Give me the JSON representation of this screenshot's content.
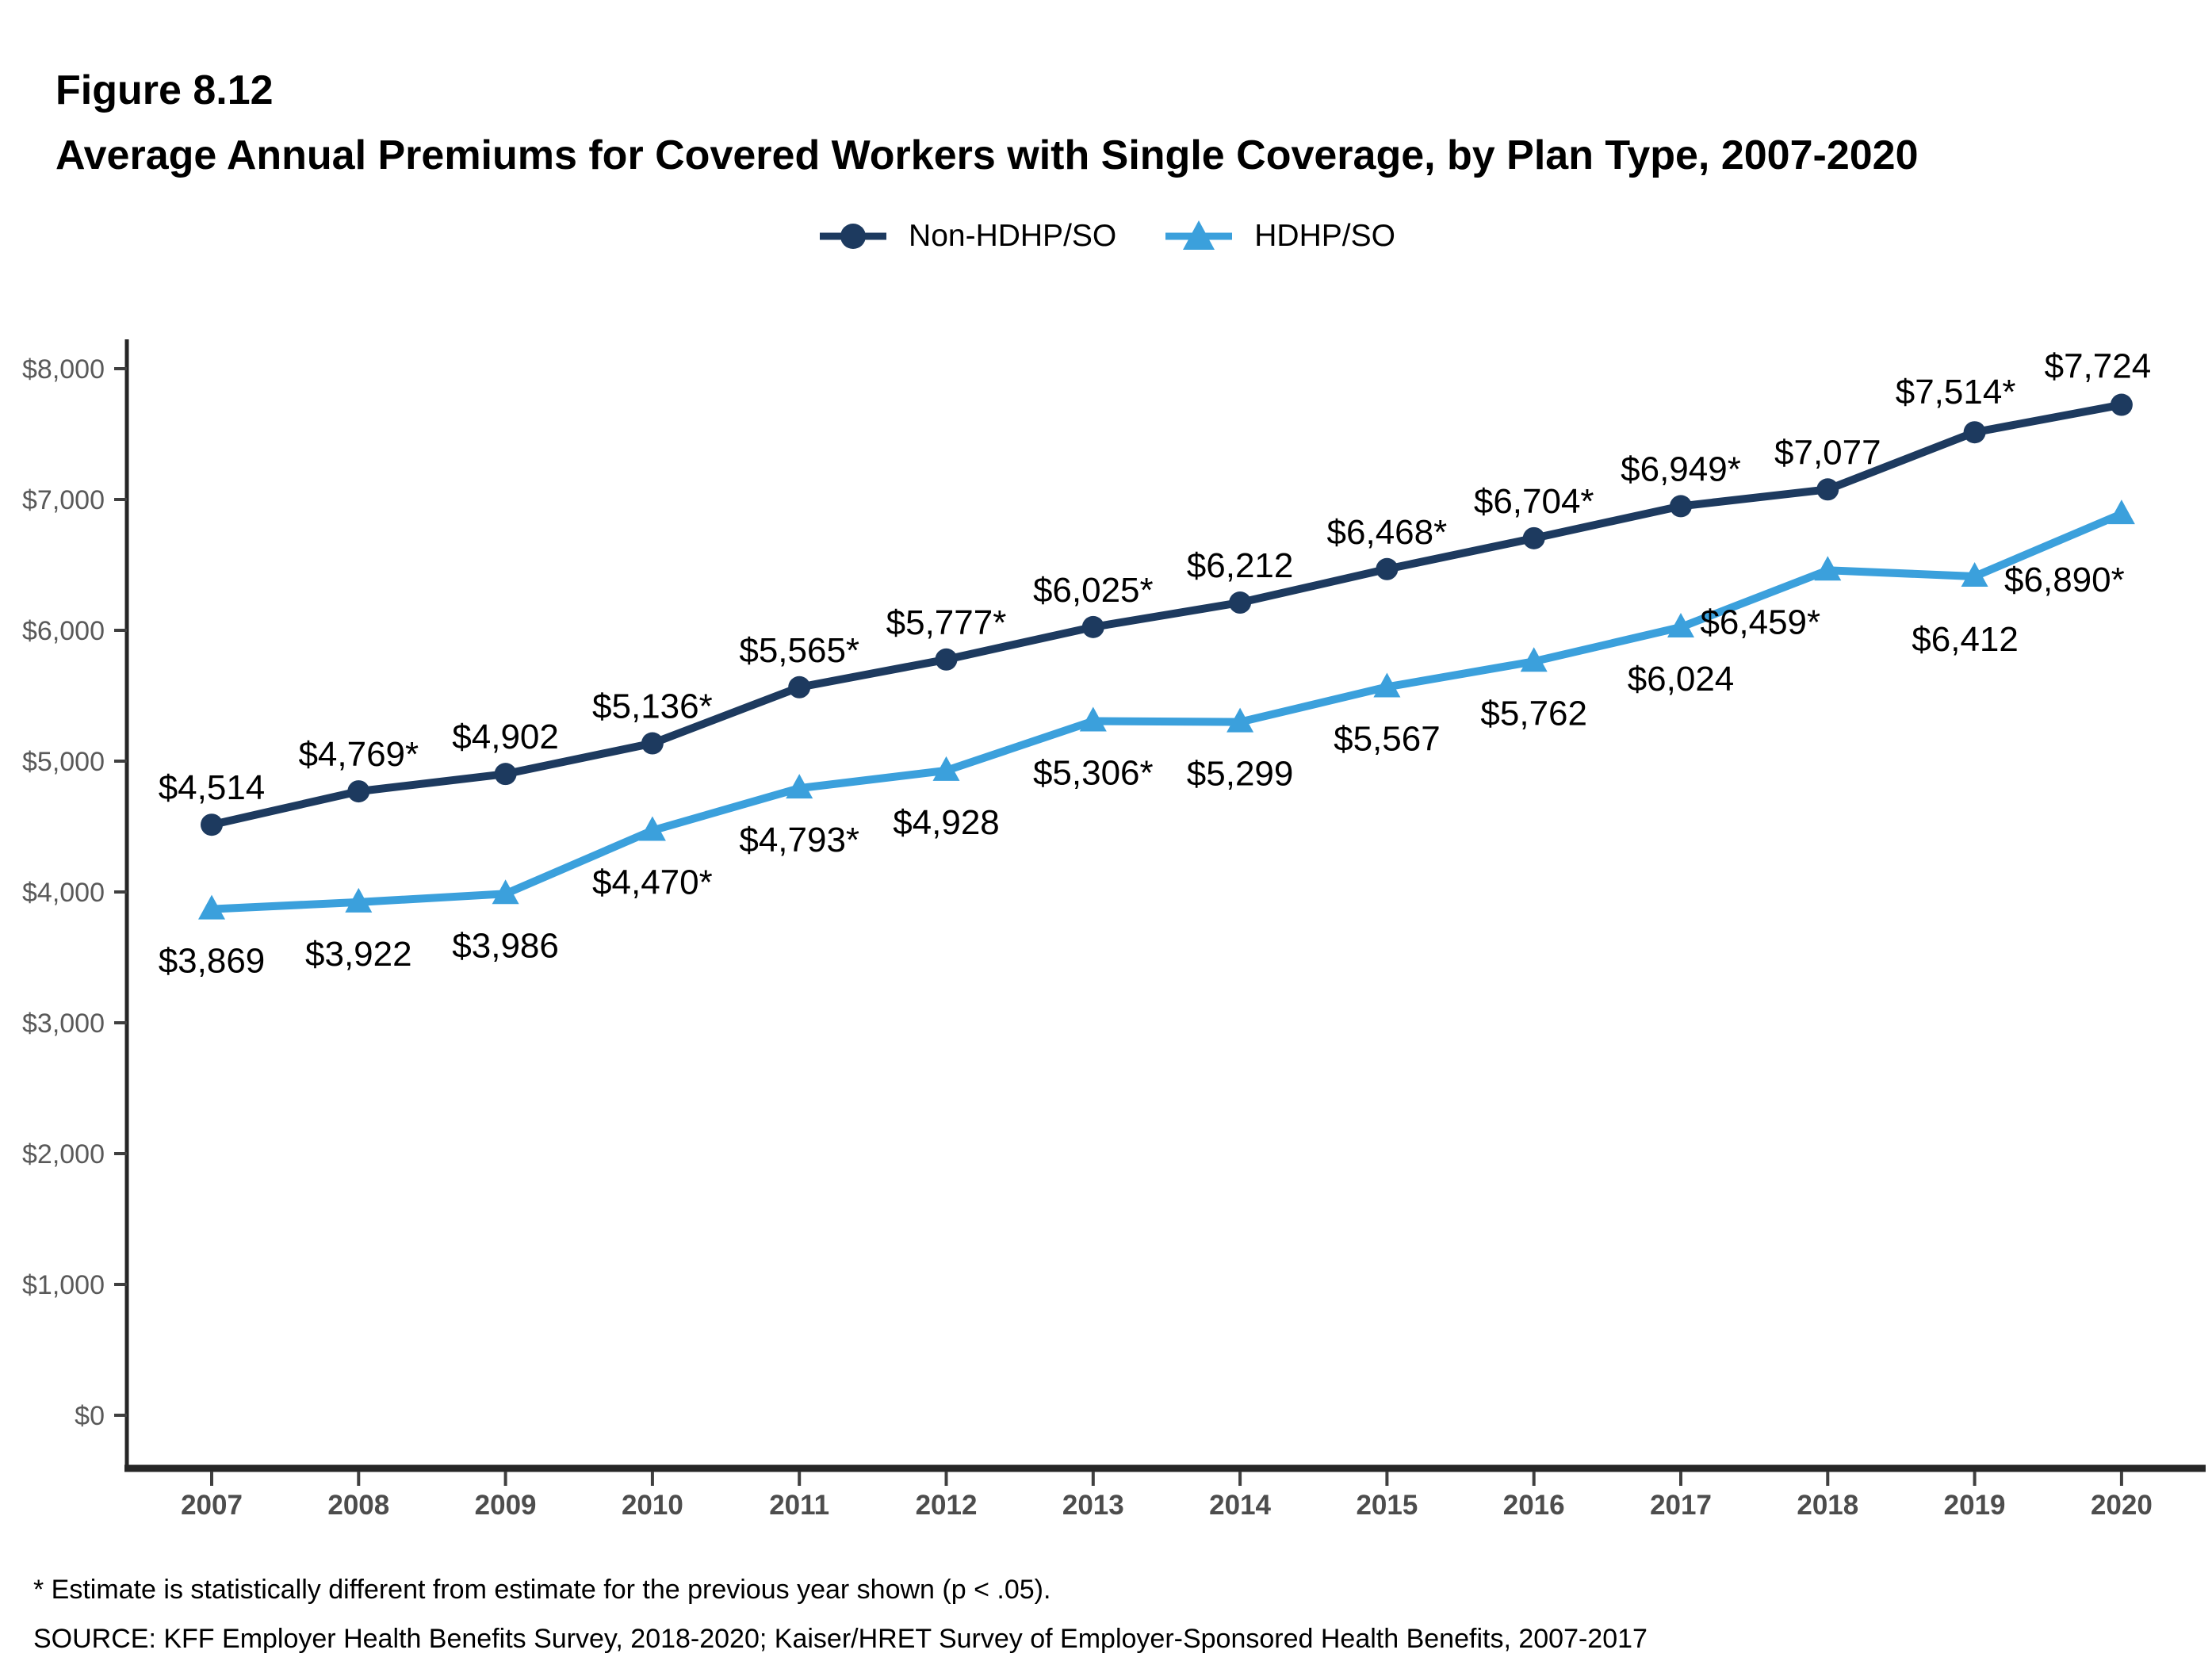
{
  "page": {
    "figure_label": "Figure 8.12",
    "title": "Average Annual Premiums for Covered Workers with Single Coverage, by Plan Type, 2007-2020",
    "footnote": "* Estimate is statistically different from estimate for the previous year shown (p < .05).",
    "source": "SOURCE: KFF Employer Health Benefits Survey, 2018-2020; Kaiser/HRET Survey of Employer-Sponsored Health Benefits, 2007-2017"
  },
  "colors": {
    "non_hdhp_line": "#1d3a5f",
    "hdhp_line": "#3ba0dc",
    "axis_line": "#262626",
    "tick_mark": "#404040",
    "y_tick_label": "#595959",
    "x_year_label": "#4d4d4d",
    "data_label": "#000000"
  },
  "chart_data": {
    "type": "line",
    "title": "Average Annual Premiums for Covered Workers with Single Coverage, by Plan Type, 2007-2020",
    "categories": [
      "2007",
      "2008",
      "2009",
      "2010",
      "2011",
      "2012",
      "2013",
      "2014",
      "2015",
      "2016",
      "2017",
      "2018",
      "2019",
      "2020"
    ],
    "xlabel": "",
    "ylabel": "",
    "ylim": [
      0,
      8000
    ],
    "ytick_step": 1000,
    "ytick_labels": [
      "$0",
      "$1,000",
      "$2,000",
      "$3,000",
      "$4,000",
      "$5,000",
      "$6,000",
      "$7,000",
      "$8,000"
    ],
    "grid": false,
    "legend_position": "top-center",
    "series": [
      {
        "name": "Non-HDHP/SO",
        "marker": "circle",
        "color": "#1d3a5f",
        "label_side": "above",
        "values": [
          4514,
          4769,
          4902,
          5136,
          5565,
          5777,
          6025,
          6212,
          6468,
          6704,
          6949,
          7077,
          7514,
          7724
        ],
        "labels": [
          "$4,514",
          "$4,769*",
          "$4,902",
          "$5,136*",
          "$5,565*",
          "$5,777*",
          "$6,025*",
          "$6,212",
          "$6,468*",
          "$6,704*",
          "$6,949*",
          "$7,077",
          "$7,514*",
          "$7,724"
        ],
        "label_offsets": {
          "12": [
            -24,
            -4
          ],
          "13": [
            -30,
            -2
          ]
        }
      },
      {
        "name": "HDHP/SO",
        "marker": "triangle",
        "color": "#3ba0dc",
        "label_side": "below",
        "values": [
          3869,
          3922,
          3986,
          4470,
          4793,
          4928,
          5306,
          5299,
          5567,
          5762,
          6024,
          6459,
          6412,
          6890
        ],
        "labels": [
          "$3,869",
          "$3,922",
          "$3,986",
          "$4,470*",
          "$4,793*",
          "$4,928",
          "$5,306*",
          "$5,299",
          "$5,567",
          "$5,762",
          "$6,024",
          "$6,459*",
          "$6,412",
          "$6,890*"
        ],
        "label_offsets": {
          "11": [
            -85,
            0
          ],
          "12": [
            -12,
            14
          ],
          "13": [
            -72,
            18
          ]
        }
      }
    ]
  }
}
